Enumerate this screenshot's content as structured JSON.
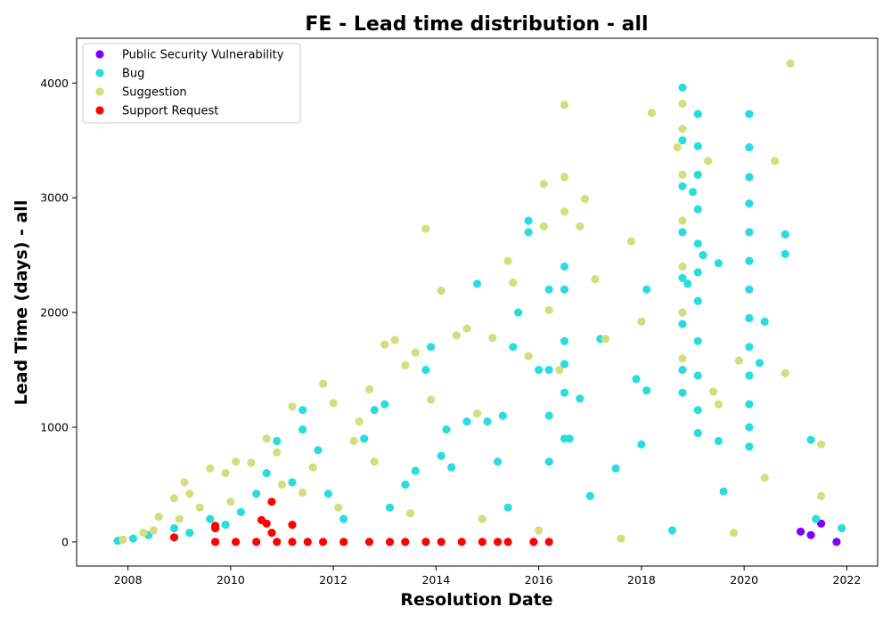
{
  "chart_data": {
    "type": "scatter",
    "title": "FE - Lead time distribution - all",
    "xlabel": "Resolution Date",
    "ylabel": "Lead Time (days) - all",
    "xlim": [
      2007.0,
      2022.6
    ],
    "ylim": [
      -210,
      4390
    ],
    "xticks": [
      2008,
      2010,
      2012,
      2014,
      2016,
      2018,
      2020,
      2022
    ],
    "yticks": [
      0,
      1000,
      2000,
      3000,
      4000
    ],
    "grid": false,
    "legend_position": "top-left",
    "series": [
      {
        "name": "Public Security Vulnerability",
        "color": "#8000ff",
        "points": [
          [
            2021.1,
            90
          ],
          [
            2021.3,
            60
          ],
          [
            2021.5,
            160
          ],
          [
            2021.8,
            0
          ]
        ]
      },
      {
        "name": "Bug",
        "color": "#2adddd",
        "points": [
          [
            2007.8,
            10
          ],
          [
            2008.1,
            30
          ],
          [
            2008.4,
            60
          ],
          [
            2008.9,
            120
          ],
          [
            2009.2,
            80
          ],
          [
            2009.6,
            200
          ],
          [
            2009.9,
            150
          ],
          [
            2010.2,
            260
          ],
          [
            2010.5,
            420
          ],
          [
            2010.7,
            600
          ],
          [
            2010.9,
            880
          ],
          [
            2011.2,
            520
          ],
          [
            2011.4,
            1150
          ],
          [
            2011.4,
            980
          ],
          [
            2011.7,
            800
          ],
          [
            2011.9,
            420
          ],
          [
            2012.2,
            200
          ],
          [
            2012.6,
            900
          ],
          [
            2012.8,
            1150
          ],
          [
            2013.1,
            300
          ],
          [
            2013.4,
            500
          ],
          [
            2013.6,
            620
          ],
          [
            2013.8,
            1500
          ],
          [
            2013.9,
            1700
          ],
          [
            2014.1,
            750
          ],
          [
            2014.3,
            650
          ],
          [
            2014.6,
            1050
          ],
          [
            2014.8,
            2250
          ],
          [
            2015.0,
            1050
          ],
          [
            2015.2,
            700
          ],
          [
            2015.4,
            300
          ],
          [
            2015.5,
            1700
          ],
          [
            2015.6,
            2000
          ],
          [
            2015.8,
            2800
          ],
          [
            2015.8,
            2700
          ],
          [
            2016.0,
            1500
          ],
          [
            2016.2,
            2200
          ],
          [
            2016.2,
            1500
          ],
          [
            2016.2,
            1100
          ],
          [
            2016.2,
            700
          ],
          [
            2016.5,
            2400
          ],
          [
            2016.5,
            2200
          ],
          [
            2016.5,
            1750
          ],
          [
            2016.5,
            1550
          ],
          [
            2016.5,
            1300
          ],
          [
            2016.5,
            900
          ],
          [
            2016.8,
            1250
          ],
          [
            2017.0,
            400
          ],
          [
            2017.5,
            640
          ],
          [
            2017.9,
            1420
          ],
          [
            2018.1,
            2200
          ],
          [
            2018.1,
            1320
          ],
          [
            2018.0,
            850
          ],
          [
            2018.6,
            100
          ],
          [
            2018.8,
            3960
          ],
          [
            2018.8,
            3500
          ],
          [
            2018.8,
            3100
          ],
          [
            2018.8,
            2700
          ],
          [
            2018.8,
            2300
          ],
          [
            2018.8,
            1900
          ],
          [
            2018.8,
            1500
          ],
          [
            2018.8,
            1300
          ],
          [
            2018.9,
            2250
          ],
          [
            2019.0,
            3050
          ],
          [
            2019.1,
            3730
          ],
          [
            2019.1,
            3450
          ],
          [
            2019.1,
            3200
          ],
          [
            2019.1,
            2900
          ],
          [
            2019.1,
            2600
          ],
          [
            2019.1,
            2350
          ],
          [
            2019.1,
            2100
          ],
          [
            2019.1,
            1750
          ],
          [
            2019.1,
            1450
          ],
          [
            2019.1,
            1150
          ],
          [
            2019.1,
            950
          ],
          [
            2019.2,
            2500
          ],
          [
            2019.5,
            2430
          ],
          [
            2019.5,
            880
          ],
          [
            2019.6,
            440
          ],
          [
            2020.1,
            3730
          ],
          [
            2020.1,
            3440
          ],
          [
            2020.1,
            3180
          ],
          [
            2020.1,
            2950
          ],
          [
            2020.1,
            2700
          ],
          [
            2020.1,
            2450
          ],
          [
            2020.1,
            2200
          ],
          [
            2020.1,
            1950
          ],
          [
            2020.1,
            1700
          ],
          [
            2020.1,
            1450
          ],
          [
            2020.1,
            1200
          ],
          [
            2020.1,
            1000
          ],
          [
            2020.1,
            830
          ],
          [
            2020.3,
            1560
          ],
          [
            2020.4,
            1920
          ],
          [
            2020.8,
            2680
          ],
          [
            2020.8,
            2510
          ],
          [
            2021.3,
            890
          ],
          [
            2021.4,
            200
          ],
          [
            2021.9,
            120
          ],
          [
            2016.6,
            900
          ],
          [
            2017.2,
            1770
          ],
          [
            2015.3,
            1100
          ],
          [
            2014.2,
            980
          ],
          [
            2013.0,
            1200
          ]
        ]
      },
      {
        "name": "Suggestion",
        "color": "#d4dd80",
        "points": [
          [
            2007.9,
            20
          ],
          [
            2008.3,
            80
          ],
          [
            2008.6,
            220
          ],
          [
            2008.9,
            380
          ],
          [
            2009.1,
            520
          ],
          [
            2009.2,
            420
          ],
          [
            2009.4,
            300
          ],
          [
            2009.6,
            640
          ],
          [
            2009.9,
            600
          ],
          [
            2010.1,
            700
          ],
          [
            2010.4,
            690
          ],
          [
            2010.7,
            900
          ],
          [
            2010.9,
            780
          ],
          [
            2011.2,
            1180
          ],
          [
            2011.4,
            430
          ],
          [
            2011.6,
            650
          ],
          [
            2011.8,
            1380
          ],
          [
            2012.0,
            1210
          ],
          [
            2012.4,
            880
          ],
          [
            2012.5,
            1050
          ],
          [
            2012.7,
            1330
          ],
          [
            2012.8,
            700
          ],
          [
            2013.0,
            1720
          ],
          [
            2013.2,
            1760
          ],
          [
            2013.4,
            1540
          ],
          [
            2013.6,
            1650
          ],
          [
            2013.8,
            2730
          ],
          [
            2013.9,
            1240
          ],
          [
            2014.1,
            2190
          ],
          [
            2014.4,
            1800
          ],
          [
            2014.6,
            1860
          ],
          [
            2014.8,
            1120
          ],
          [
            2015.1,
            1780
          ],
          [
            2015.4,
            2450
          ],
          [
            2015.5,
            2260
          ],
          [
            2015.8,
            1620
          ],
          [
            2016.1,
            3120
          ],
          [
            2016.1,
            2750
          ],
          [
            2016.2,
            2020
          ],
          [
            2016.4,
            1500
          ],
          [
            2016.5,
            3810
          ],
          [
            2016.5,
            3180
          ],
          [
            2016.5,
            2880
          ],
          [
            2016.8,
            2750
          ],
          [
            2016.9,
            2990
          ],
          [
            2017.1,
            2290
          ],
          [
            2017.3,
            1770
          ],
          [
            2017.8,
            2620
          ],
          [
            2018.0,
            1920
          ],
          [
            2018.2,
            3740
          ],
          [
            2018.7,
            3440
          ],
          [
            2018.8,
            3820
          ],
          [
            2018.8,
            3600
          ],
          [
            2018.8,
            3200
          ],
          [
            2018.8,
            2800
          ],
          [
            2018.8,
            2400
          ],
          [
            2018.8,
            2000
          ],
          [
            2018.8,
            1600
          ],
          [
            2019.3,
            3320
          ],
          [
            2019.4,
            1310
          ],
          [
            2019.5,
            1200
          ],
          [
            2019.9,
            1580
          ],
          [
            2020.6,
            3320
          ],
          [
            2020.8,
            1470
          ],
          [
            2020.9,
            4170
          ],
          [
            2021.5,
            850
          ],
          [
            2021.5,
            400
          ],
          [
            2020.4,
            560
          ],
          [
            2019.8,
            80
          ],
          [
            2017.6,
            30
          ],
          [
            2008.5,
            100
          ],
          [
            2009.0,
            200
          ],
          [
            2010.0,
            350
          ],
          [
            2011.0,
            500
          ],
          [
            2012.1,
            300
          ],
          [
            2013.5,
            250
          ],
          [
            2014.9,
            200
          ],
          [
            2016.0,
            100
          ]
        ]
      },
      {
        "name": "Support Request",
        "color": "#ff0000",
        "points": [
          [
            2008.9,
            40
          ],
          [
            2009.7,
            140
          ],
          [
            2009.7,
            120
          ],
          [
            2009.7,
            0
          ],
          [
            2010.1,
            0
          ],
          [
            2010.5,
            0
          ],
          [
            2010.6,
            190
          ],
          [
            2010.7,
            160
          ],
          [
            2010.8,
            350
          ],
          [
            2010.8,
            80
          ],
          [
            2010.9,
            0
          ],
          [
            2011.2,
            0
          ],
          [
            2011.2,
            150
          ],
          [
            2011.5,
            0
          ],
          [
            2011.8,
            0
          ],
          [
            2012.2,
            0
          ],
          [
            2012.7,
            0
          ],
          [
            2013.1,
            0
          ],
          [
            2013.4,
            0
          ],
          [
            2013.8,
            0
          ],
          [
            2014.1,
            0
          ],
          [
            2014.5,
            0
          ],
          [
            2014.9,
            0
          ],
          [
            2015.2,
            0
          ],
          [
            2015.4,
            0
          ],
          [
            2015.9,
            0
          ],
          [
            2016.2,
            0
          ]
        ]
      }
    ]
  }
}
